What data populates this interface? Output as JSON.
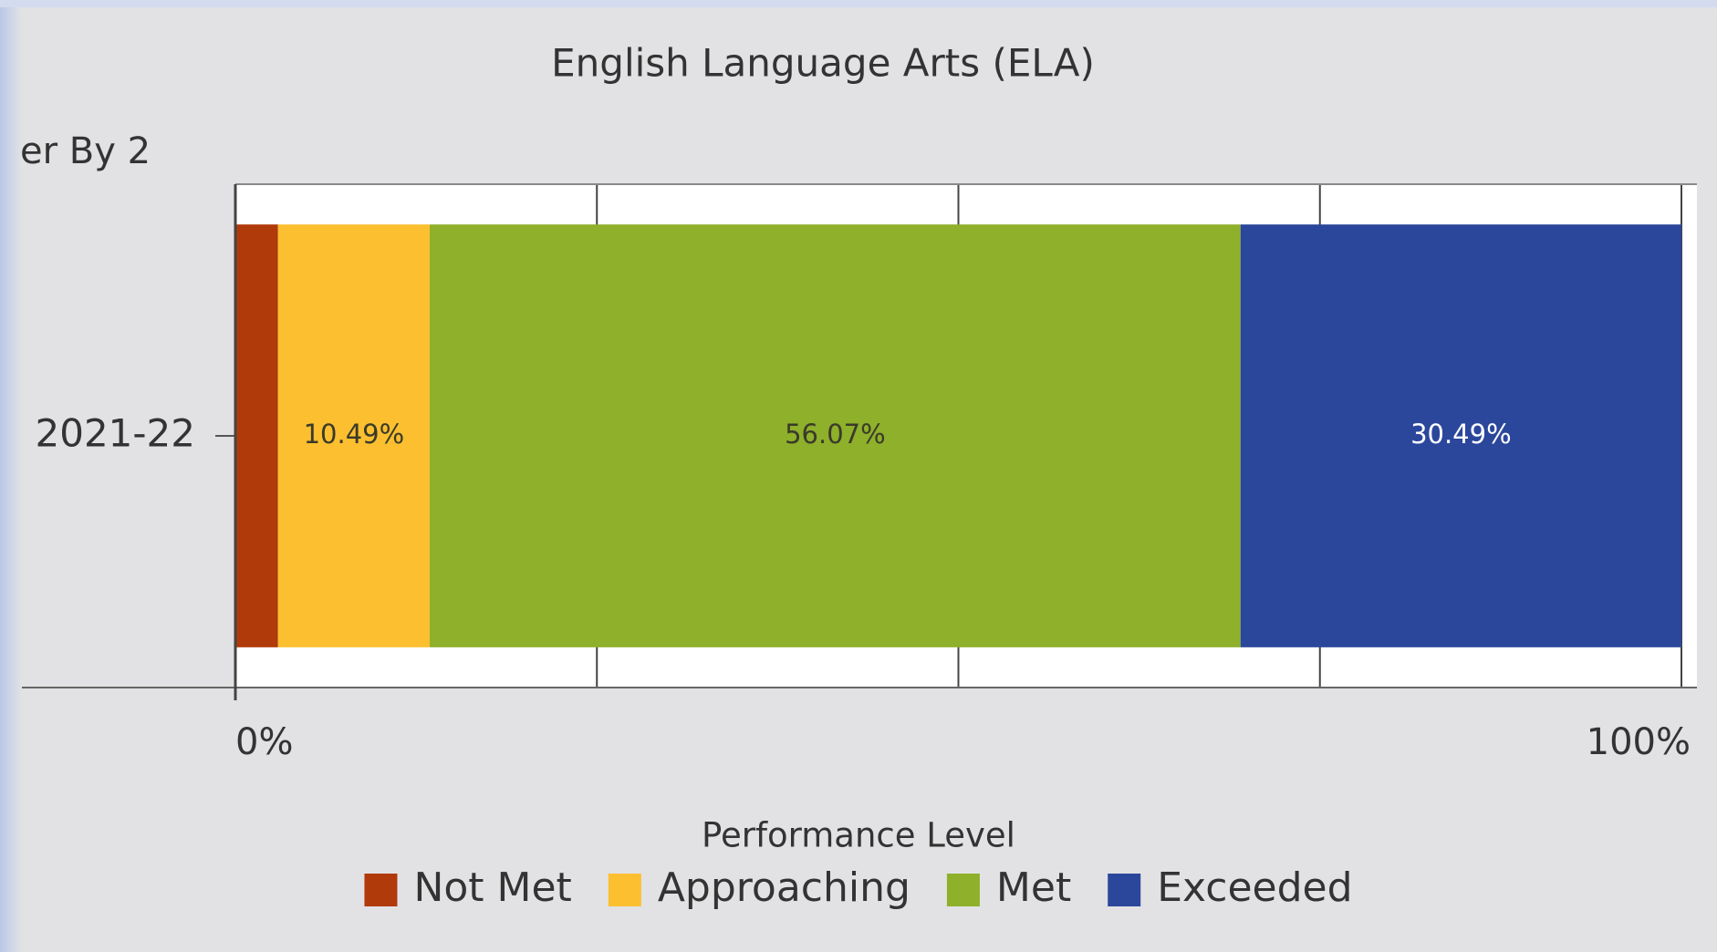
{
  "chart_data": {
    "type": "stacked-barh",
    "title": "English Language Arts (ELA)",
    "filter_label": "er By 2",
    "categories": [
      "2021-22"
    ],
    "series": [
      {
        "name": "Not Met",
        "color": "#b03a0a",
        "values": [
          2.95
        ],
        "value_labels": [
          null
        ]
      },
      {
        "name": "Approaching",
        "color": "#fbbf2f",
        "values": [
          10.49
        ],
        "value_labels": [
          "10.49%"
        ]
      },
      {
        "name": "Met",
        "color": "#8eb02a",
        "values": [
          56.07
        ],
        "value_labels": [
          "56.07%"
        ]
      },
      {
        "name": "Exceeded",
        "color": "#2b479c",
        "values": [
          30.49
        ],
        "value_labels": [
          "30.49%"
        ]
      }
    ],
    "xlim": [
      0,
      100
    ],
    "xticks": [
      {
        "value": 0,
        "label": "0%"
      },
      {
        "value": 25,
        "label": null
      },
      {
        "value": 50,
        "label": null
      },
      {
        "value": 75,
        "label": null
      },
      {
        "value": 100,
        "label": "100%"
      }
    ],
    "grid": true,
    "legend_title": "Performance Level",
    "legend": "bottom"
  }
}
